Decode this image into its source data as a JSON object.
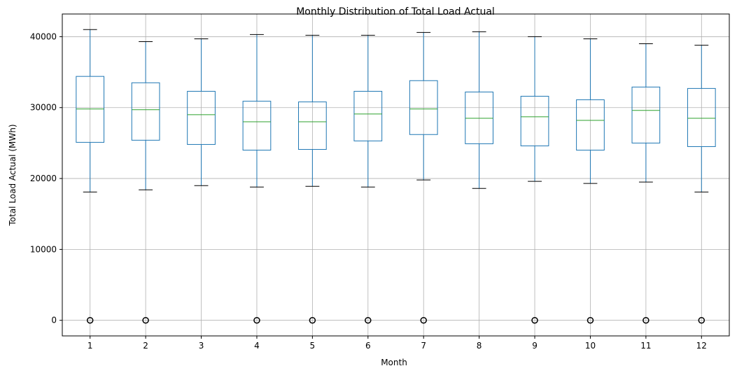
{
  "chart_data": {
    "type": "box",
    "title": "Monthly Distribution of Total Load Actual",
    "xlabel": "Month",
    "ylabel": "Total Load Actual (MWh)",
    "ylim": [
      -2200,
      43200
    ],
    "yticks": [
      0,
      10000,
      20000,
      30000,
      40000
    ],
    "grid": true,
    "categories": [
      "1",
      "2",
      "3",
      "4",
      "5",
      "6",
      "7",
      "8",
      "9",
      "10",
      "11",
      "12"
    ],
    "boxes": [
      {
        "whisker_low": 18100,
        "q1": 25100,
        "median": 29800,
        "q3": 34400,
        "whisker_high": 41000,
        "outliers": [
          0
        ]
      },
      {
        "whisker_low": 18400,
        "q1": 25400,
        "median": 29700,
        "q3": 33500,
        "whisker_high": 39300,
        "outliers": [
          0
        ]
      },
      {
        "whisker_low": 19000,
        "q1": 24800,
        "median": 29000,
        "q3": 32300,
        "whisker_high": 39700,
        "outliers": []
      },
      {
        "whisker_low": 18800,
        "q1": 24000,
        "median": 28000,
        "q3": 30900,
        "whisker_high": 40300,
        "outliers": [
          0
        ]
      },
      {
        "whisker_low": 18900,
        "q1": 24100,
        "median": 28000,
        "q3": 30800,
        "whisker_high": 40200,
        "outliers": [
          0
        ]
      },
      {
        "whisker_low": 18800,
        "q1": 25300,
        "median": 29100,
        "q3": 32300,
        "whisker_high": 40200,
        "outliers": [
          0
        ]
      },
      {
        "whisker_low": 19800,
        "q1": 26200,
        "median": 29800,
        "q3": 33800,
        "whisker_high": 40600,
        "outliers": [
          0
        ]
      },
      {
        "whisker_low": 18600,
        "q1": 24900,
        "median": 28500,
        "q3": 32200,
        "whisker_high": 40700,
        "outliers": []
      },
      {
        "whisker_low": 19600,
        "q1": 24600,
        "median": 28700,
        "q3": 31600,
        "whisker_high": 40000,
        "outliers": [
          0
        ]
      },
      {
        "whisker_low": 19300,
        "q1": 24000,
        "median": 28200,
        "q3": 31100,
        "whisker_high": 39700,
        "outliers": [
          0
        ]
      },
      {
        "whisker_low": 19500,
        "q1": 25000,
        "median": 29600,
        "q3": 32900,
        "whisker_high": 39000,
        "outliers": [
          0
        ]
      },
      {
        "whisker_low": 18100,
        "q1": 24500,
        "median": 28500,
        "q3": 32700,
        "whisker_high": 38800,
        "outliers": [
          0
        ]
      }
    ],
    "colors": {
      "box": "#1f77b4",
      "median": "#2ca02c",
      "cap": "#000000",
      "outlier": "#000000",
      "grid": "#b0b0b0"
    }
  }
}
